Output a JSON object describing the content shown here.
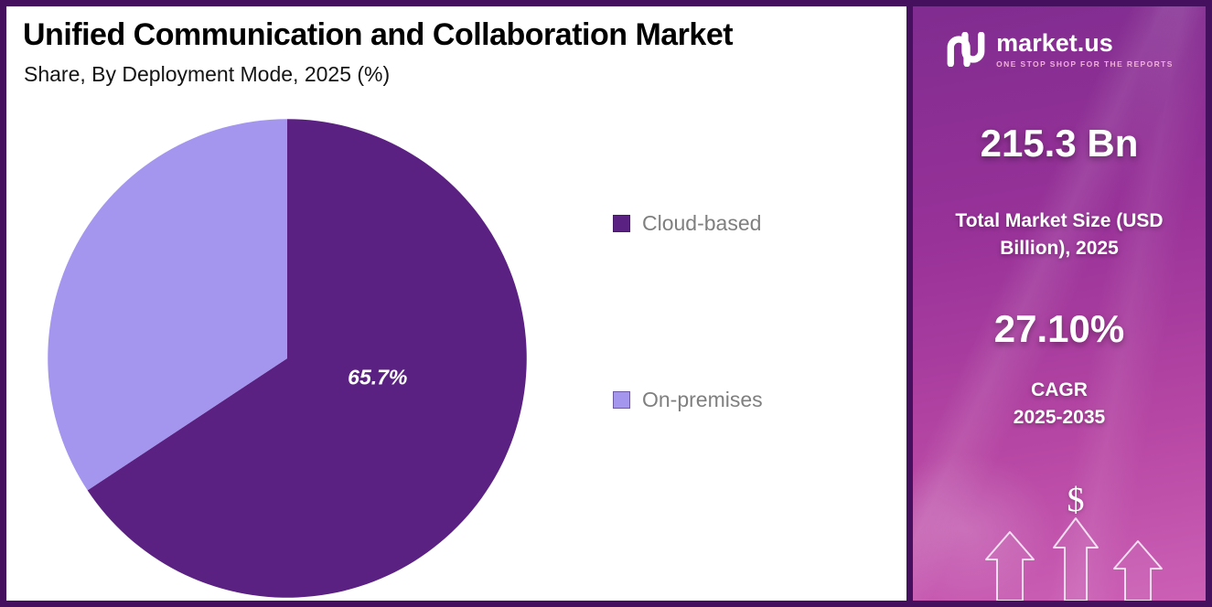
{
  "header": {
    "title": "Unified Communication and Collaboration Market",
    "subtitle": "Share, By Deployment Mode, 2025 (%)"
  },
  "chart_data": {
    "type": "pie",
    "title": "Unified Communication and Collaboration Market Share, By Deployment Mode, 2025 (%)",
    "categories": [
      "Cloud-based",
      "On-premises"
    ],
    "values": [
      65.7,
      34.3
    ],
    "unit": "%",
    "colors": [
      "#5b2182",
      "#a495ee"
    ],
    "start_angle_deg": 0,
    "direction": "clockwise",
    "data_label": "65.7%",
    "legend_position": "right"
  },
  "legend": {
    "items": [
      {
        "label": "Cloud-based",
        "color": "#5b2182"
      },
      {
        "label": "On-premises",
        "color": "#a495ee"
      }
    ]
  },
  "side_panel": {
    "brand": {
      "name": "market.us",
      "tagline": "ONE STOP SHOP FOR THE REPORTS"
    },
    "market_size_value": "215.3 Bn",
    "market_size_label": "Total Market Size (USD Billion), 2025",
    "cagr_value": "27.10%",
    "cagr_label_line1": "CAGR",
    "cagr_label_line2": "2025-2035",
    "dollar_icon": "$"
  }
}
